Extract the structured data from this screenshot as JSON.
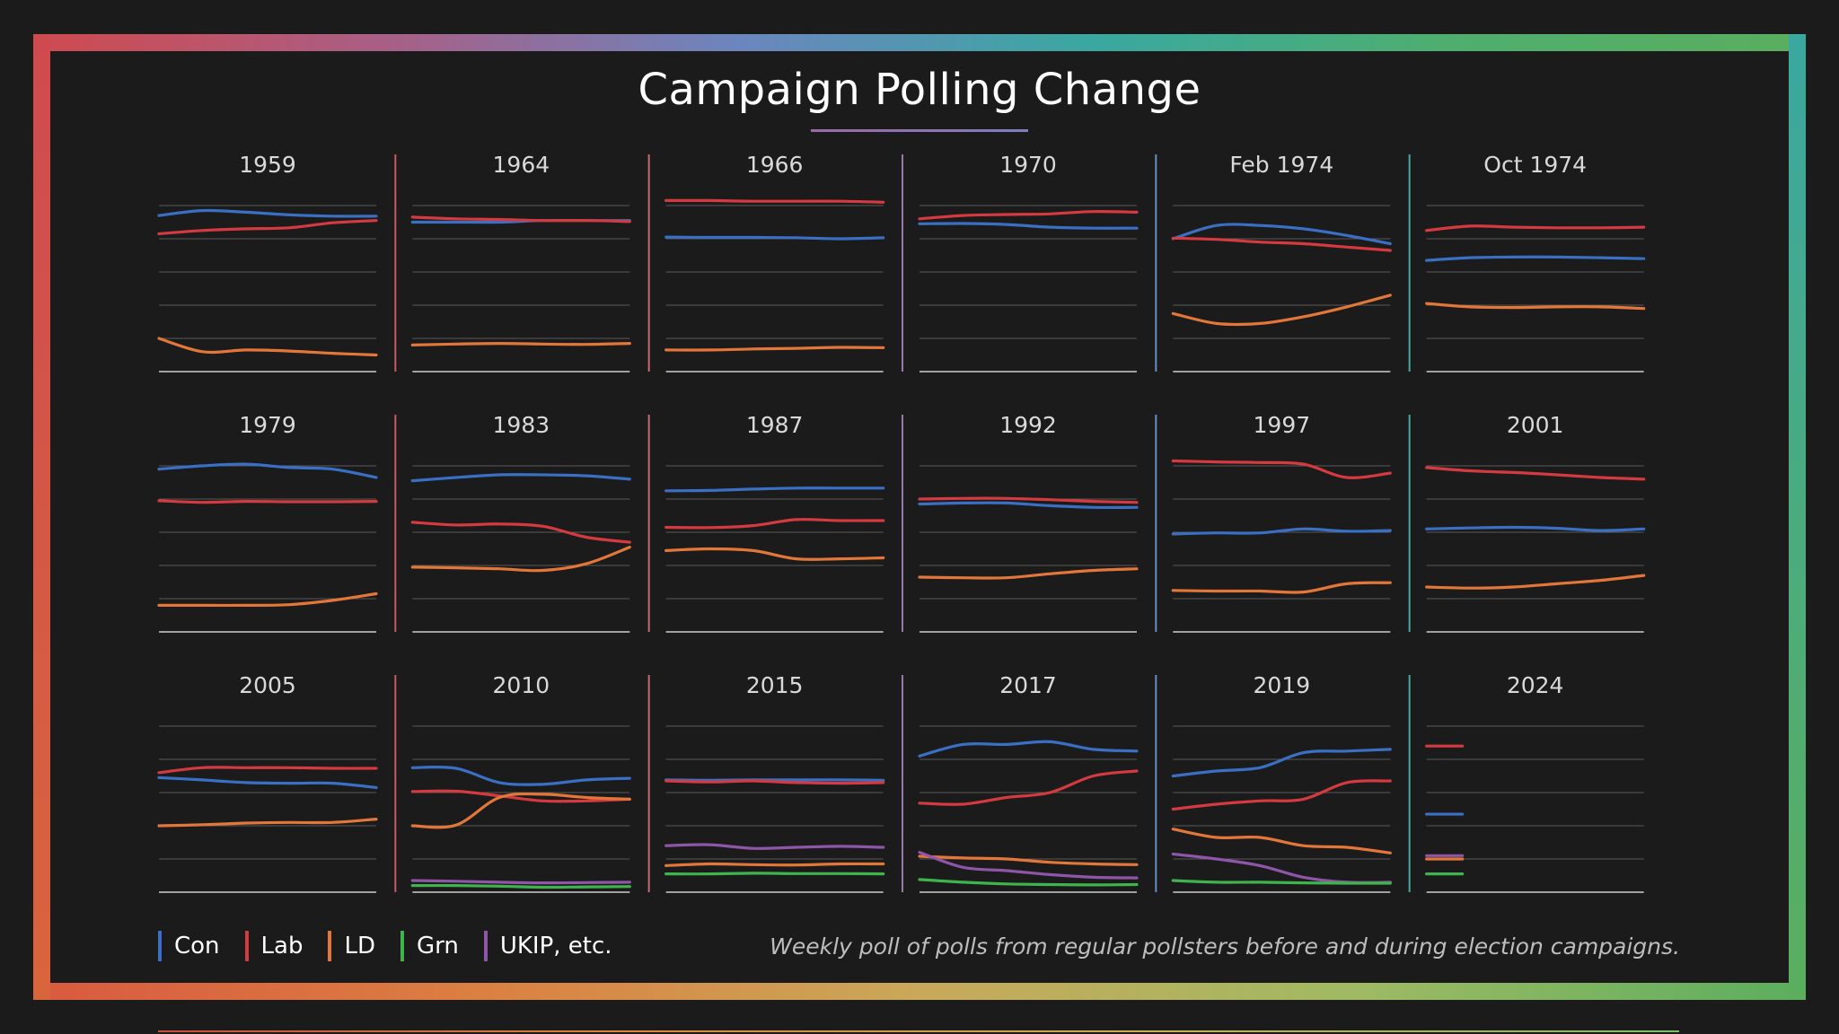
{
  "title": "Campaign Polling Change",
  "footnote": "Weekly poll of polls from regular pollsters before and during election campaigns.",
  "colors": {
    "Con": "#3a6fc4",
    "Lab": "#d43a3f",
    "LD": "#e3773a",
    "Grn": "#3fb44d",
    "UKIP": "#8e55a8",
    "frame_gradient": [
      "#cf4a4f",
      "#a85f86",
      "#6b86be",
      "#3aa8a0",
      "#4fae6e",
      "#5aae5e"
    ],
    "frame_gradient_bottom": [
      "#d85a3f",
      "#db7f42",
      "#c9a85a",
      "#9fba63",
      "#5aae5e"
    ]
  },
  "legend": [
    {
      "key": "Con",
      "label": "Con"
    },
    {
      "key": "Lab",
      "label": "Lab"
    },
    {
      "key": "LD",
      "label": "LD"
    },
    {
      "key": "Grn",
      "label": "Grn"
    },
    {
      "key": "UKIP",
      "label": "UKIP, etc."
    }
  ],
  "chart_data": {
    "type": "line",
    "description_layout": "small multiples, 3 rows x 6 columns",
    "ylim": [
      0,
      50
    ],
    "grid": true,
    "panels": [
      {
        "title": "1959",
        "series": {
          "Con": [
            47,
            48.5,
            48,
            47.2,
            46.8,
            46.8
          ],
          "Lab": [
            41.5,
            42.5,
            43,
            43.3,
            44.8,
            45.5
          ],
          "LD": [
            10,
            6,
            6.5,
            6.2,
            5.5,
            5
          ]
        }
      },
      {
        "title": "1964",
        "series": {
          "Con": [
            45,
            45,
            45,
            45.5,
            45.5,
            45.5
          ],
          "Lab": [
            46.5,
            46,
            45.8,
            45.5,
            45.5,
            45.2
          ],
          "LD": [
            8,
            8.3,
            8.5,
            8.3,
            8.2,
            8.5
          ]
        }
      },
      {
        "title": "1966",
        "series": {
          "Con": [
            40.5,
            40.4,
            40.4,
            40.3,
            40,
            40.3
          ],
          "Lab": [
            51.5,
            51.5,
            51.3,
            51.3,
            51.3,
            51
          ],
          "LD": [
            6.5,
            6.5,
            6.8,
            7,
            7.3,
            7.2
          ]
        }
      },
      {
        "title": "1970",
        "series": {
          "Con": [
            44.5,
            44.6,
            44.3,
            43.5,
            43.2,
            43.2
          ],
          "Lab": [
            46,
            47,
            47.3,
            47.5,
            48.2,
            48
          ]
        },
        "_LD": null
      },
      {
        "title": "Feb 1974",
        "series": {
          "Con": [
            40,
            44,
            44,
            43,
            41,
            38.5
          ],
          "Lab": [
            40.2,
            39.8,
            39,
            38.5,
            37.5,
            36.5
          ],
          "LD": [
            17.5,
            14.5,
            14.5,
            16.5,
            19.5,
            23
          ]
        }
      },
      {
        "title": "Oct 1974",
        "series": {
          "Con": [
            33.5,
            34.3,
            34.5,
            34.5,
            34.3,
            34
          ],
          "Lab": [
            42.5,
            43.8,
            43.5,
            43.3,
            43.3,
            43.5
          ],
          "LD": [
            20.5,
            19.5,
            19.3,
            19.5,
            19.5,
            19
          ]
        }
      },
      {
        "title": "1979",
        "series": {
          "Con": [
            49,
            50,
            50.5,
            49.5,
            49,
            46.5
          ],
          "Lab": [
            39.5,
            39,
            39.3,
            39.2,
            39.2,
            39.3
          ],
          "LD": [
            8,
            8,
            8,
            8.2,
            9.5,
            11.5
          ]
        }
      },
      {
        "title": "1983",
        "series": {
          "Con": [
            45.5,
            46.5,
            47.3,
            47.3,
            47,
            46
          ],
          "Lab": [
            33,
            32.2,
            32.5,
            31.8,
            28.5,
            27
          ],
          "LD": [
            19.5,
            19.3,
            19,
            18.5,
            20.5,
            25.5
          ]
        }
      },
      {
        "title": "1987",
        "series": {
          "Con": [
            42.5,
            42.6,
            43,
            43.3,
            43.3,
            43.3
          ],
          "Lab": [
            31.5,
            31.4,
            32,
            33.8,
            33.5,
            33.5
          ],
          "LD": [
            24.5,
            25,
            24.5,
            22,
            22,
            22.3
          ]
        }
      },
      {
        "title": "1992",
        "series": {
          "Con": [
            38.5,
            38.8,
            38.8,
            38,
            37.5,
            37.5
          ],
          "Lab": [
            40,
            40.2,
            40.2,
            39.8,
            39.3,
            39
          ],
          "LD": [
            16.5,
            16.3,
            16.3,
            17.5,
            18.5,
            19
          ]
        }
      },
      {
        "title": "1997",
        "series": {
          "Con": [
            29.5,
            29.8,
            29.8,
            31,
            30.3,
            30.5
          ],
          "Lab": [
            51.5,
            51.2,
            51,
            50.5,
            46.5,
            47.8
          ],
          "LD": [
            12.5,
            12.3,
            12.3,
            12,
            14.5,
            14.8
          ]
        }
      },
      {
        "title": "2001",
        "series": {
          "Con": [
            31,
            31.3,
            31.5,
            31.2,
            30.5,
            31
          ],
          "Lab": [
            49.5,
            48.5,
            48,
            47.3,
            46.5,
            46
          ],
          "LD": [
            13.5,
            13.2,
            13.5,
            14.5,
            15.5,
            17
          ]
        }
      },
      {
        "title": "2005",
        "series": {
          "Con": [
            34.5,
            33.8,
            33,
            32.8,
            32.8,
            31.5
          ],
          "Lab": [
            36,
            37.5,
            37.5,
            37.5,
            37.3,
            37.3
          ],
          "LD": [
            20,
            20.3,
            20.8,
            21,
            21,
            22
          ]
        }
      },
      {
        "title": "2010",
        "series": {
          "Con": [
            37.5,
            37.3,
            33,
            32.5,
            33.8,
            34.3
          ],
          "Lab": [
            30.3,
            30.4,
            29,
            27.5,
            27.5,
            28
          ],
          "LD": [
            20,
            20.2,
            28.5,
            29.5,
            28.5,
            28
          ],
          "UKIP": [
            3.5,
            3.3,
            3,
            2.8,
            2.9,
            3
          ],
          "Grn": [
            2,
            2,
            1.8,
            1.5,
            1.6,
            1.7
          ]
        }
      },
      {
        "title": "2015",
        "series": {
          "Con": [
            33.8,
            33.7,
            33.8,
            33.8,
            33.8,
            33.7
          ],
          "Lab": [
            33.5,
            33.2,
            33.5,
            33,
            32.8,
            33
          ],
          "UKIP": [
            14,
            14.3,
            13.2,
            13.5,
            13.8,
            13.5
          ],
          "LD": [
            8,
            8.5,
            8.3,
            8.2,
            8.5,
            8.5
          ],
          "Grn": [
            5.5,
            5.5,
            5.7,
            5.6,
            5.6,
            5.5
          ]
        }
      },
      {
        "title": "2017",
        "series": {
          "Con": [
            41,
            44.5,
            44.5,
            45.3,
            43,
            42.5
          ],
          "Lab": [
            26.8,
            26.5,
            28.5,
            30,
            35,
            36.5
          ],
          "LD": [
            10.8,
            10.3,
            10,
            9,
            8.5,
            8.3
          ],
          "UKIP": [
            12,
            7.5,
            6.5,
            5.3,
            4.5,
            4.3
          ],
          "Grn": [
            3.8,
            3,
            2.5,
            2.3,
            2.2,
            2.3
          ]
        }
      },
      {
        "title": "2019",
        "series": {
          "Con": [
            35,
            36.5,
            37.5,
            42,
            42.5,
            43
          ],
          "Lab": [
            25,
            26.5,
            27.5,
            28,
            33,
            33.5
          ],
          "LD": [
            19,
            16.5,
            16.5,
            14,
            13.5,
            11.8
          ],
          "UKIP": [
            11.5,
            10,
            8,
            4.5,
            3,
            3
          ],
          "Grn": [
            3.5,
            3,
            3,
            2.8,
            2.7,
            2.7
          ]
        }
      },
      {
        "title": "2024",
        "series": {
          "Lab": [
            44
          ],
          "Con": [
            23.5
          ],
          "UKIP": [
            11
          ],
          "LD": [
            10
          ],
          "Grn": [
            5.5
          ]
        }
      }
    ]
  }
}
